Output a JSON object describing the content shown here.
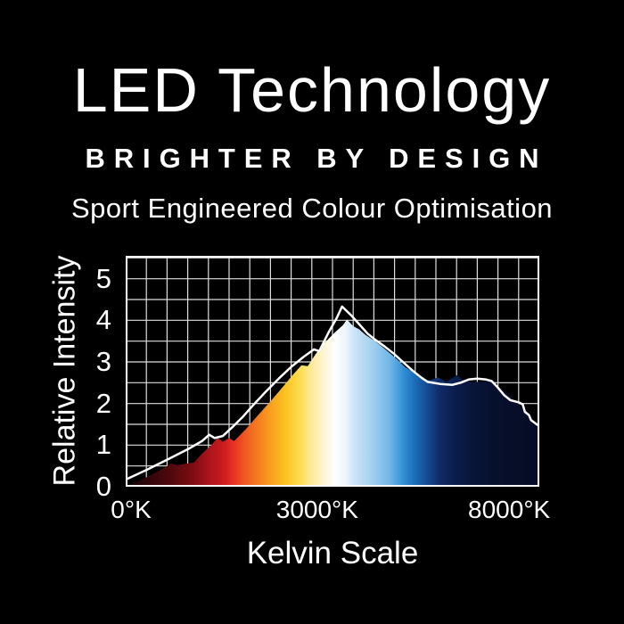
{
  "colors": {
    "background": "#000000",
    "text": "#ffffff",
    "grid_line": "#dedede",
    "plot_border": "#ffffff",
    "intensity_line": "#ffffff"
  },
  "header": {
    "title": "LED Technology",
    "tagline": "BRIGHTER BY DESIGN",
    "subtitle": "Sport Engineered Colour Optimisation"
  },
  "chart_data": {
    "type": "area",
    "title": "",
    "xlabel": "Kelvin Scale",
    "ylabel": "Relative Intensity",
    "ylim": [
      0,
      5.55
    ],
    "y_ticks": [
      0,
      1,
      2,
      3,
      4,
      5
    ],
    "x_ticks": [
      {
        "label": "0°K",
        "pos": 0.013
      },
      {
        "label": "3000°K",
        "pos": 0.463
      },
      {
        "label": "8000°K",
        "pos": 0.927
      }
    ],
    "grid": {
      "row_step": 0.5,
      "cols": 20,
      "visible": true,
      "legend": "none"
    },
    "spectrum_gradient": [
      [
        0.0,
        "#140204"
      ],
      [
        0.05,
        "#2e050a"
      ],
      [
        0.11,
        "#50080e"
      ],
      [
        0.16,
        "#7b0d12"
      ],
      [
        0.2,
        "#a8141a"
      ],
      [
        0.24,
        "#cf1e20"
      ],
      [
        0.262,
        "#e93323"
      ],
      [
        0.29,
        "#ef5b21"
      ],
      [
        0.32,
        "#f47d1e"
      ],
      [
        0.353,
        "#f8a21e"
      ],
      [
        0.386,
        "#fbc322"
      ],
      [
        0.418,
        "#fcdb4a"
      ],
      [
        0.45,
        "#fdea9a"
      ],
      [
        0.483,
        "#fef6d8"
      ],
      [
        0.505,
        "#ffffff"
      ],
      [
        0.53,
        "#eef6fc"
      ],
      [
        0.55,
        "#cfe6f7"
      ],
      [
        0.6,
        "#9dcef0"
      ],
      [
        0.64,
        "#6fb5e6"
      ],
      [
        0.67,
        "#3390d4"
      ],
      [
        0.7,
        "#1a6cb8"
      ],
      [
        0.73,
        "#154a90"
      ],
      [
        0.76,
        "#0f2a66"
      ],
      [
        0.8,
        "#0a1c4a"
      ],
      [
        0.84,
        "#081538"
      ],
      [
        0.9,
        "#060f2c"
      ],
      [
        1.0,
        "#050c24"
      ]
    ],
    "series": [
      {
        "name": "colour-spectrum-area",
        "kind": "area",
        "points": [
          [
            0.0,
            0.0
          ],
          [
            0.03,
            0.13
          ],
          [
            0.065,
            0.3
          ],
          [
            0.095,
            0.47
          ],
          [
            0.11,
            0.56
          ],
          [
            0.125,
            0.52
          ],
          [
            0.145,
            0.55
          ],
          [
            0.165,
            0.58
          ],
          [
            0.185,
            0.8
          ],
          [
            0.205,
            0.98
          ],
          [
            0.222,
            1.17
          ],
          [
            0.235,
            1.08
          ],
          [
            0.25,
            1.17
          ],
          [
            0.262,
            1.1
          ],
          [
            0.29,
            1.38
          ],
          [
            0.32,
            1.72
          ],
          [
            0.35,
            2.05
          ],
          [
            0.38,
            2.4
          ],
          [
            0.405,
            2.7
          ],
          [
            0.425,
            2.92
          ],
          [
            0.44,
            2.9
          ],
          [
            0.46,
            3.2
          ],
          [
            0.48,
            3.45
          ],
          [
            0.505,
            3.7
          ],
          [
            0.525,
            3.88
          ],
          [
            0.535,
            4.02
          ],
          [
            0.55,
            3.86
          ],
          [
            0.565,
            3.78
          ],
          [
            0.58,
            3.65
          ],
          [
            0.6,
            3.52
          ],
          [
            0.618,
            3.38
          ],
          [
            0.64,
            3.2
          ],
          [
            0.658,
            3.05
          ],
          [
            0.675,
            2.88
          ],
          [
            0.695,
            2.76
          ],
          [
            0.715,
            2.62
          ],
          [
            0.735,
            2.55
          ],
          [
            0.755,
            2.63
          ],
          [
            0.775,
            2.52
          ],
          [
            0.8,
            2.68
          ],
          [
            0.815,
            2.58
          ],
          [
            0.835,
            2.52
          ],
          [
            0.86,
            2.52
          ],
          [
            0.88,
            2.55
          ],
          [
            0.9,
            2.42
          ],
          [
            0.925,
            2.22
          ],
          [
            0.945,
            2.05
          ],
          [
            0.965,
            1.8
          ],
          [
            0.985,
            1.58
          ],
          [
            1.0,
            1.45
          ]
        ]
      },
      {
        "name": "relative-intensity-line",
        "kind": "line",
        "points": [
          [
            0.004,
            0.19
          ],
          [
            0.05,
            0.4
          ],
          [
            0.1,
            0.65
          ],
          [
            0.15,
            0.9
          ],
          [
            0.185,
            1.1
          ],
          [
            0.202,
            1.25
          ],
          [
            0.215,
            1.17
          ],
          [
            0.235,
            1.22
          ],
          [
            0.26,
            1.45
          ],
          [
            0.285,
            1.7
          ],
          [
            0.31,
            1.98
          ],
          [
            0.34,
            2.3
          ],
          [
            0.37,
            2.6
          ],
          [
            0.4,
            2.88
          ],
          [
            0.43,
            3.12
          ],
          [
            0.455,
            3.3
          ],
          [
            0.468,
            3.26
          ],
          [
            0.49,
            3.7
          ],
          [
            0.51,
            4.05
          ],
          [
            0.523,
            4.33
          ],
          [
            0.545,
            4.12
          ],
          [
            0.565,
            3.9
          ],
          [
            0.585,
            3.68
          ],
          [
            0.605,
            3.52
          ],
          [
            0.625,
            3.38
          ],
          [
            0.648,
            3.2
          ],
          [
            0.67,
            3.0
          ],
          [
            0.695,
            2.78
          ],
          [
            0.715,
            2.62
          ],
          [
            0.73,
            2.52
          ],
          [
            0.76,
            2.47
          ],
          [
            0.79,
            2.45
          ],
          [
            0.81,
            2.5
          ],
          [
            0.83,
            2.58
          ],
          [
            0.85,
            2.6
          ],
          [
            0.87,
            2.58
          ],
          [
            0.885,
            2.54
          ],
          [
            0.9,
            2.38
          ],
          [
            0.915,
            2.2
          ],
          [
            0.93,
            2.08
          ],
          [
            0.95,
            2.03
          ],
          [
            0.96,
            1.98
          ],
          [
            0.965,
            1.8
          ],
          [
            0.975,
            1.72
          ],
          [
            0.98,
            1.6
          ],
          [
            0.995,
            1.49
          ]
        ]
      }
    ]
  }
}
